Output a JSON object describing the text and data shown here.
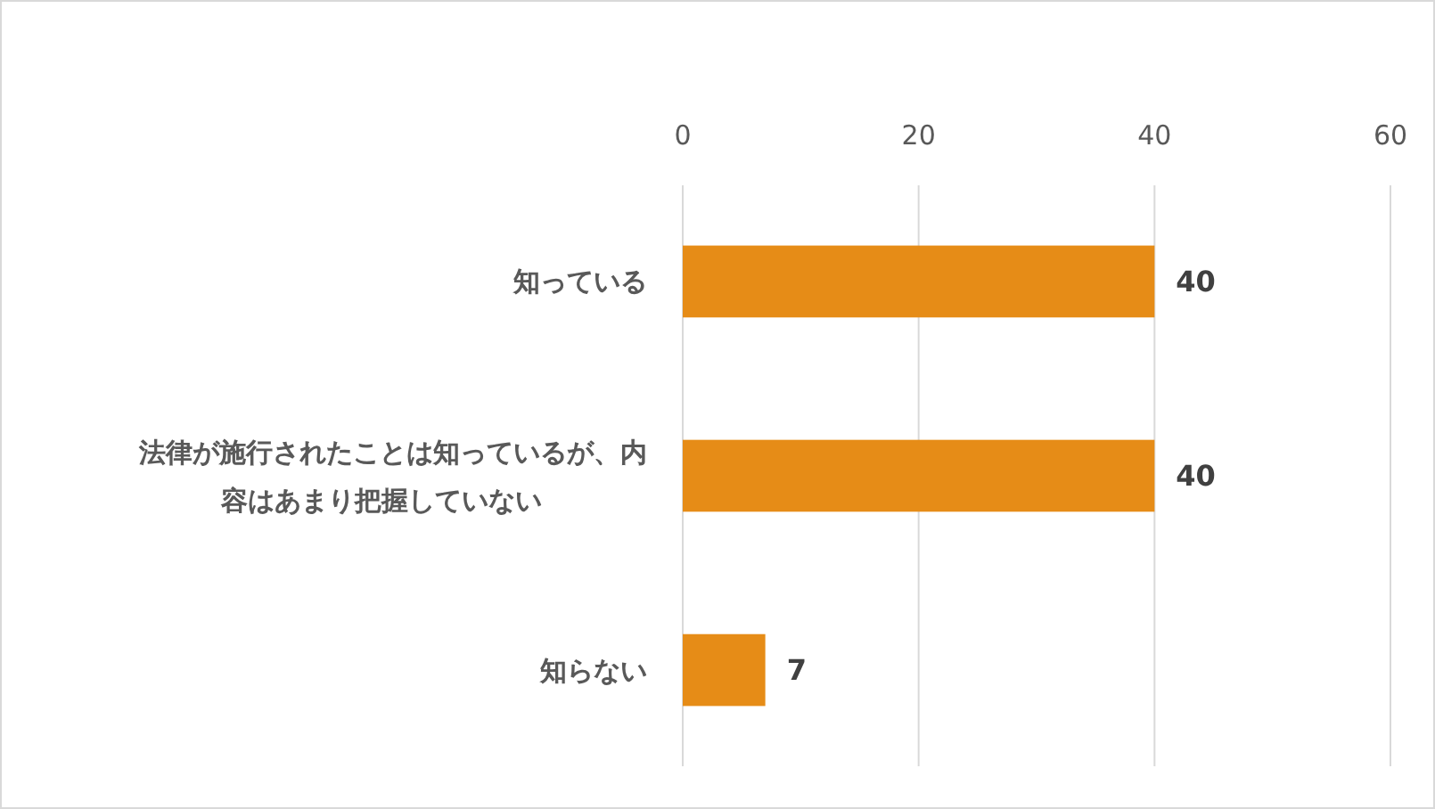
{
  "chart_data": {
    "type": "bar",
    "orientation": "horizontal",
    "categories": [
      "知っている",
      "法律が施行されたことは知っているが、内容はあまり把握していない",
      "知らない"
    ],
    "values": [
      40,
      40,
      7
    ],
    "color": "#e68c17",
    "xlim": [
      0,
      60
    ],
    "xticks": [
      0,
      20,
      40,
      60
    ],
    "grid": "x",
    "data_labels": true
  }
}
